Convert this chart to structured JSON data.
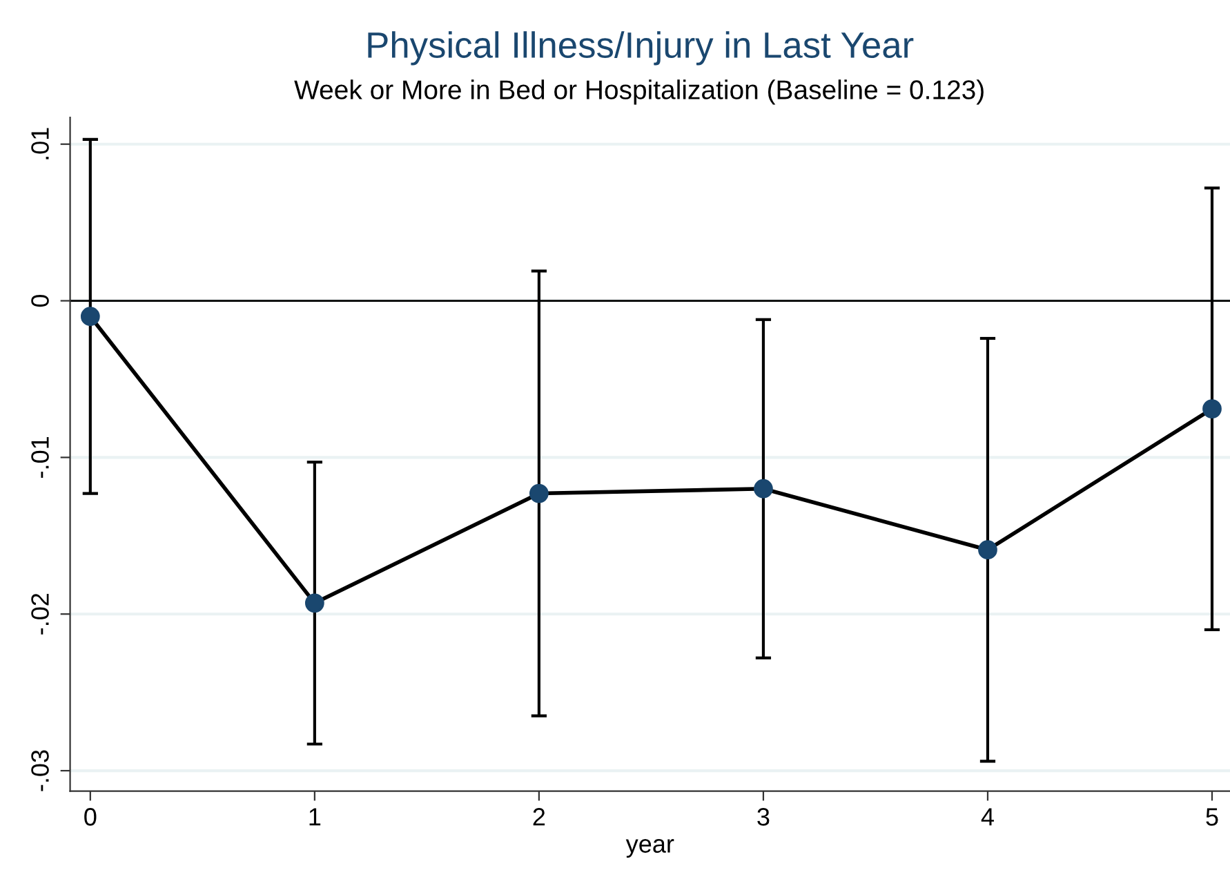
{
  "chart_data": {
    "type": "line",
    "title": "Physical Illness/Injury in Last Year",
    "subtitle": "Week or More in Bed or Hospitalization (Baseline = 0.123)",
    "xlabel": "year",
    "x": [
      0,
      1,
      2,
      3,
      4,
      5
    ],
    "series": [
      {
        "color": "#1a476f",
        "values": [
          -0.001,
          -0.0193,
          -0.0123,
          -0.012,
          -0.0159,
          -0.0069
        ],
        "errors": [
          0.0113,
          0.009,
          0.0142,
          0.0108,
          0.0135,
          0.0141
        ]
      }
    ],
    "xlim": [
      -0.09,
      5.08
    ],
    "xticks": [
      0,
      1,
      2,
      3,
      4,
      5
    ],
    "ylim": [
      -0.0313,
      0.0117
    ],
    "yticks": [
      {
        "value": 0.01,
        "label": ".01"
      },
      0,
      {
        "value": -0.01,
        "label": "-.01"
      },
      {
        "value": -0.02,
        "label": "-.02"
      },
      {
        "value": -0.03,
        "label": "-.03"
      }
    ],
    "ref_lines": [
      {
        "axis": "y",
        "value": 0,
        "color": "#000000"
      }
    ],
    "grid": "y",
    "marker": "circle",
    "line_style": "solid",
    "legend": false
  }
}
